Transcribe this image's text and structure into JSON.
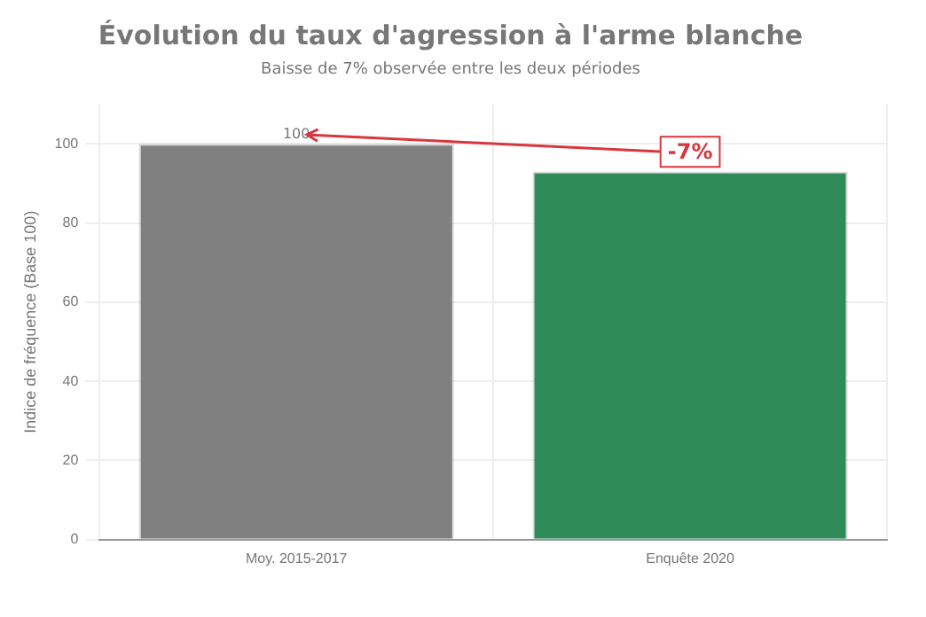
{
  "chart_data": {
    "type": "bar",
    "title": "Évolution du taux d'agression à l'arme blanche",
    "subtitle": "Baisse de 7% observée entre les deux périodes",
    "ylabel": "Indice de fréquence (Base 100)",
    "categories": [
      "Moy. 2015-2017",
      "Enquête 2020"
    ],
    "values": [
      100,
      93
    ],
    "colors": [
      "#808080",
      "#2e8b57"
    ],
    "value_labels": [
      "100",
      null
    ],
    "annotations": [
      {
        "text": "-7%",
        "x": "Enquête 2020",
        "y": 98
      }
    ],
    "ylim": [
      0,
      110
    ],
    "yticks": [
      0,
      20,
      40,
      60,
      80,
      100
    ],
    "grid": true,
    "legend": false
  }
}
